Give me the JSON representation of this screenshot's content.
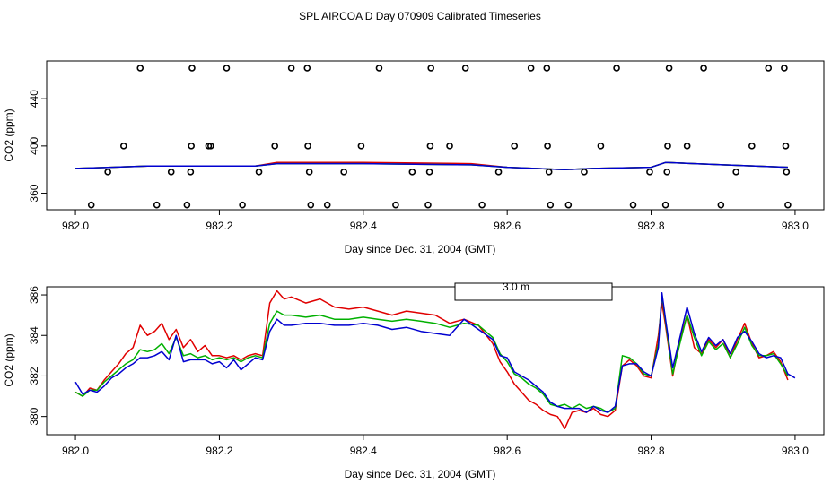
{
  "title": "SPL AIRCOA D  Day 070909  Calibrated Timeseries",
  "chart_data": [
    {
      "type": "scatter",
      "title": "SPL AIRCOA D  Day 070909  Calibrated Timeseries",
      "xlabel": "Day since Dec. 31, 2004 (GMT)",
      "ylabel": "CO2 (ppm)",
      "xlim": [
        981.96,
        983.04
      ],
      "ylim": [
        346,
        472
      ],
      "xticks": [
        982.0,
        982.2,
        982.4,
        982.6,
        982.8,
        983.0
      ],
      "xtick_labels": [
        "982.0",
        "982.2",
        "982.4",
        "982.6",
        "982.8",
        "983.0"
      ],
      "yticks": [
        360,
        400,
        440
      ],
      "ytick_labels": [
        "360",
        "400",
        "440"
      ],
      "colors": {
        "red": "#e00000",
        "green": "#00b000",
        "blue": "#0000d0"
      },
      "points": [
        {
          "x": 982.022,
          "y": 350
        },
        {
          "x": 982.045,
          "y": 378
        },
        {
          "x": 982.067,
          "y": 400
        },
        {
          "x": 982.09,
          "y": 466
        },
        {
          "x": 982.113,
          "y": 350
        },
        {
          "x": 982.133,
          "y": 378
        },
        {
          "x": 982.155,
          "y": 350
        },
        {
          "x": 982.16,
          "y": 378
        },
        {
          "x": 982.161,
          "y": 400
        },
        {
          "x": 982.162,
          "y": 466
        },
        {
          "x": 982.185,
          "y": 400
        },
        {
          "x": 982.188,
          "y": 400
        },
        {
          "x": 982.21,
          "y": 466
        },
        {
          "x": 982.232,
          "y": 350
        },
        {
          "x": 982.255,
          "y": 378
        },
        {
          "x": 982.277,
          "y": 400
        },
        {
          "x": 982.3,
          "y": 466
        },
        {
          "x": 982.322,
          "y": 466
        },
        {
          "x": 982.323,
          "y": 400
        },
        {
          "x": 982.325,
          "y": 378
        },
        {
          "x": 982.327,
          "y": 350
        },
        {
          "x": 982.35,
          "y": 350
        },
        {
          "x": 982.373,
          "y": 378
        },
        {
          "x": 982.397,
          "y": 400
        },
        {
          "x": 982.422,
          "y": 466
        },
        {
          "x": 982.445,
          "y": 350
        },
        {
          "x": 982.468,
          "y": 378
        },
        {
          "x": 982.49,
          "y": 350
        },
        {
          "x": 982.492,
          "y": 378
        },
        {
          "x": 982.493,
          "y": 400
        },
        {
          "x": 982.494,
          "y": 466
        },
        {
          "x": 982.52,
          "y": 400
        },
        {
          "x": 982.542,
          "y": 466
        },
        {
          "x": 982.565,
          "y": 350
        },
        {
          "x": 982.588,
          "y": 378
        },
        {
          "x": 982.61,
          "y": 400
        },
        {
          "x": 982.633,
          "y": 466
        },
        {
          "x": 982.655,
          "y": 466
        },
        {
          "x": 982.656,
          "y": 400
        },
        {
          "x": 982.658,
          "y": 378
        },
        {
          "x": 982.66,
          "y": 350
        },
        {
          "x": 982.685,
          "y": 350
        },
        {
          "x": 982.707,
          "y": 378
        },
        {
          "x": 982.73,
          "y": 400
        },
        {
          "x": 982.752,
          "y": 466
        },
        {
          "x": 982.775,
          "y": 350
        },
        {
          "x": 982.798,
          "y": 378
        },
        {
          "x": 982.82,
          "y": 350
        },
        {
          "x": 982.822,
          "y": 378
        },
        {
          "x": 982.823,
          "y": 400
        },
        {
          "x": 982.825,
          "y": 466
        },
        {
          "x": 982.85,
          "y": 400
        },
        {
          "x": 982.873,
          "y": 466
        },
        {
          "x": 982.897,
          "y": 350
        },
        {
          "x": 982.918,
          "y": 378
        },
        {
          "x": 982.94,
          "y": 400
        },
        {
          "x": 982.963,
          "y": 466
        },
        {
          "x": 982.985,
          "y": 466
        },
        {
          "x": 982.987,
          "y": 400
        },
        {
          "x": 982.988,
          "y": 378
        },
        {
          "x": 982.99,
          "y": 350
        }
      ],
      "series": [
        {
          "name": "red",
          "color": "#e00000",
          "x": [
            982.0,
            982.1,
            982.2,
            982.25,
            982.28,
            982.4,
            982.55,
            982.6,
            982.68,
            982.72,
            982.8,
            982.82,
            982.9,
            982.99
          ],
          "values": [
            381,
            383,
            383,
            383,
            386,
            386,
            385,
            382,
            380,
            381,
            382,
            386,
            384,
            382
          ]
        },
        {
          "name": "green",
          "color": "#00b000",
          "x": [
            982.0,
            982.1,
            982.2,
            982.25,
            982.28,
            982.4,
            982.55,
            982.6,
            982.68,
            982.72,
            982.8,
            982.82,
            982.9,
            982.99
          ],
          "values": [
            381,
            383,
            383,
            383,
            385,
            385,
            384,
            382,
            380,
            381,
            382,
            386,
            384,
            382
          ]
        },
        {
          "name": "blue",
          "color": "#0000d0",
          "x": [
            982.0,
            982.1,
            982.2,
            982.25,
            982.28,
            982.4,
            982.55,
            982.6,
            982.68,
            982.72,
            982.8,
            982.82,
            982.9,
            982.99
          ],
          "values": [
            381,
            383,
            383,
            383,
            385,
            385,
            384,
            382,
            380,
            381,
            382,
            386,
            384,
            382
          ]
        }
      ]
    },
    {
      "type": "line",
      "title": "",
      "xlabel": "Day since Dec. 31, 2004 (GMT)",
      "ylabel": "CO2 (ppm)",
      "xlim": [
        981.96,
        983.04
      ],
      "ylim": [
        379.1,
        386.4
      ],
      "xticks": [
        982.0,
        982.2,
        982.4,
        982.6,
        982.8,
        983.0
      ],
      "xtick_labels": [
        "982.0",
        "982.2",
        "982.4",
        "982.6",
        "982.8",
        "983.0"
      ],
      "yticks": [
        380,
        382,
        384,
        386
      ],
      "ytick_labels": [
        "380",
        "382",
        "384",
        "386"
      ],
      "legend_text": "3.0 m",
      "series": [
        {
          "name": "red",
          "color": "#e00000",
          "x": [
            982.0,
            982.01,
            982.02,
            982.03,
            982.04,
            982.05,
            982.06,
            982.07,
            982.08,
            982.09,
            982.1,
            982.11,
            982.12,
            982.13,
            982.14,
            982.15,
            982.16,
            982.17,
            982.18,
            982.19,
            982.2,
            982.21,
            982.22,
            982.23,
            982.24,
            982.25,
            982.26,
            982.27,
            982.28,
            982.29,
            982.3,
            982.32,
            982.34,
            982.36,
            982.38,
            982.4,
            982.42,
            982.44,
            982.46,
            982.48,
            982.5,
            982.52,
            982.54,
            982.56,
            982.58,
            982.59,
            982.6,
            982.61,
            982.62,
            982.63,
            982.64,
            982.65,
            982.66,
            982.67,
            982.68,
            982.69,
            982.7,
            982.71,
            982.72,
            982.73,
            982.74,
            982.75,
            982.76,
            982.77,
            982.78,
            982.79,
            982.8,
            982.81,
            982.815,
            982.82,
            982.83,
            982.84,
            982.85,
            982.86,
            982.87,
            982.88,
            982.89,
            982.9,
            982.91,
            982.92,
            982.93,
            982.94,
            982.95,
            982.96,
            982.97,
            982.98,
            982.99
          ],
          "values": [
            381.2,
            381.0,
            381.4,
            381.3,
            381.8,
            382.2,
            382.6,
            383.1,
            383.4,
            384.5,
            384.0,
            384.2,
            384.6,
            383.8,
            384.3,
            383.4,
            383.8,
            383.2,
            383.5,
            383.0,
            383.0,
            382.9,
            383.0,
            382.8,
            383.0,
            383.1,
            383.0,
            385.6,
            386.2,
            385.8,
            385.9,
            385.6,
            385.8,
            385.4,
            385.3,
            385.4,
            385.2,
            385.0,
            385.2,
            385.1,
            385.0,
            384.6,
            384.8,
            384.5,
            383.6,
            382.7,
            382.2,
            381.6,
            381.2,
            380.8,
            380.6,
            380.3,
            380.1,
            380.0,
            379.4,
            380.2,
            380.3,
            380.2,
            380.4,
            380.1,
            380.0,
            380.3,
            382.5,
            382.8,
            382.5,
            382.0,
            381.9,
            384.0,
            385.6,
            384.5,
            382.0,
            383.8,
            385.0,
            383.4,
            383.1,
            383.8,
            383.4,
            383.8,
            382.9,
            383.8,
            384.6,
            383.6,
            382.9,
            383.0,
            383.2,
            382.7,
            381.8
          ]
        },
        {
          "name": "green",
          "color": "#00b000",
          "x": [
            982.0,
            982.01,
            982.02,
            982.03,
            982.04,
            982.05,
            982.06,
            982.07,
            982.08,
            982.09,
            982.1,
            982.11,
            982.12,
            982.13,
            982.14,
            982.15,
            982.16,
            982.17,
            982.18,
            982.19,
            982.2,
            982.21,
            982.22,
            982.23,
            982.24,
            982.25,
            982.26,
            982.27,
            982.28,
            982.29,
            982.3,
            982.32,
            982.34,
            982.36,
            982.38,
            982.4,
            982.42,
            982.44,
            982.46,
            982.48,
            982.5,
            982.52,
            982.54,
            982.56,
            982.58,
            982.59,
            982.6,
            982.61,
            982.62,
            982.63,
            982.64,
            982.65,
            982.66,
            982.67,
            982.68,
            982.69,
            982.7,
            982.71,
            982.72,
            982.73,
            982.74,
            982.75,
            982.76,
            982.77,
            982.78,
            982.79,
            982.8,
            982.81,
            982.815,
            982.82,
            982.83,
            982.84,
            982.85,
            982.86,
            982.87,
            982.88,
            982.89,
            982.9,
            982.91,
            982.92,
            982.93,
            982.94,
            982.95,
            982.96,
            982.97,
            982.98,
            982.99
          ],
          "values": [
            381.2,
            381.0,
            381.3,
            381.3,
            381.7,
            382.0,
            382.3,
            382.6,
            382.8,
            383.3,
            383.2,
            383.3,
            383.6,
            383.1,
            383.9,
            383.0,
            383.1,
            382.9,
            383.0,
            382.8,
            382.9,
            382.8,
            382.9,
            382.7,
            382.9,
            383.0,
            382.9,
            384.6,
            385.2,
            385.0,
            385.0,
            384.9,
            385.0,
            384.8,
            384.8,
            384.9,
            384.8,
            384.7,
            384.8,
            384.7,
            384.6,
            384.4,
            384.6,
            384.5,
            383.9,
            383.1,
            382.7,
            382.1,
            381.9,
            381.6,
            381.4,
            381.1,
            380.6,
            380.5,
            380.6,
            380.4,
            380.6,
            380.4,
            380.5,
            380.4,
            380.2,
            380.4,
            383.0,
            382.9,
            382.6,
            382.1,
            382.0,
            383.6,
            386.0,
            384.7,
            382.1,
            383.6,
            385.0,
            383.9,
            383.0,
            383.7,
            383.3,
            383.6,
            382.9,
            383.6,
            384.4,
            383.5,
            383.0,
            383.0,
            383.1,
            382.6,
            382.0
          ]
        },
        {
          "name": "blue",
          "color": "#0000d0",
          "x": [
            982.0,
            982.01,
            982.02,
            982.03,
            982.04,
            982.05,
            982.06,
            982.07,
            982.08,
            982.09,
            982.1,
            982.11,
            982.12,
            982.13,
            982.14,
            982.15,
            982.16,
            982.17,
            982.18,
            982.19,
            982.2,
            982.21,
            982.22,
            982.23,
            982.24,
            982.25,
            982.26,
            982.27,
            982.28,
            982.29,
            982.3,
            982.32,
            982.34,
            982.36,
            982.38,
            982.4,
            982.42,
            982.44,
            982.46,
            982.48,
            982.5,
            982.52,
            982.54,
            982.56,
            982.58,
            982.59,
            982.6,
            982.61,
            982.62,
            982.63,
            982.64,
            982.65,
            982.66,
            982.67,
            982.68,
            982.69,
            982.7,
            982.71,
            982.72,
            982.73,
            982.74,
            982.75,
            982.76,
            982.77,
            982.78,
            982.79,
            982.8,
            982.81,
            982.815,
            982.82,
            982.83,
            982.84,
            982.85,
            982.86,
            982.87,
            982.88,
            982.89,
            982.9,
            982.91,
            982.92,
            982.93,
            982.94,
            982.95,
            982.96,
            982.97,
            982.98,
            982.99,
            983.0
          ],
          "values": [
            381.7,
            381.1,
            381.3,
            381.2,
            381.5,
            381.9,
            382.1,
            382.4,
            382.6,
            382.9,
            382.9,
            383.0,
            383.2,
            382.8,
            384.0,
            382.7,
            382.8,
            382.8,
            382.8,
            382.6,
            382.7,
            382.4,
            382.8,
            382.3,
            382.6,
            382.9,
            382.8,
            384.2,
            384.8,
            384.5,
            384.5,
            384.6,
            384.6,
            384.5,
            384.5,
            384.6,
            384.5,
            384.3,
            384.4,
            384.2,
            384.1,
            384.0,
            384.8,
            384.3,
            383.8,
            383.0,
            382.9,
            382.2,
            382.0,
            381.8,
            381.5,
            381.2,
            380.7,
            380.5,
            380.4,
            380.4,
            380.4,
            380.2,
            380.5,
            380.3,
            380.2,
            380.5,
            382.5,
            382.6,
            382.6,
            382.2,
            382.0,
            383.4,
            386.1,
            384.8,
            382.4,
            383.9,
            385.4,
            384.1,
            383.2,
            383.9,
            383.5,
            383.8,
            383.1,
            383.9,
            384.2,
            383.7,
            383.1,
            382.9,
            383.0,
            382.9,
            382.1,
            381.9
          ]
        }
      ]
    }
  ]
}
